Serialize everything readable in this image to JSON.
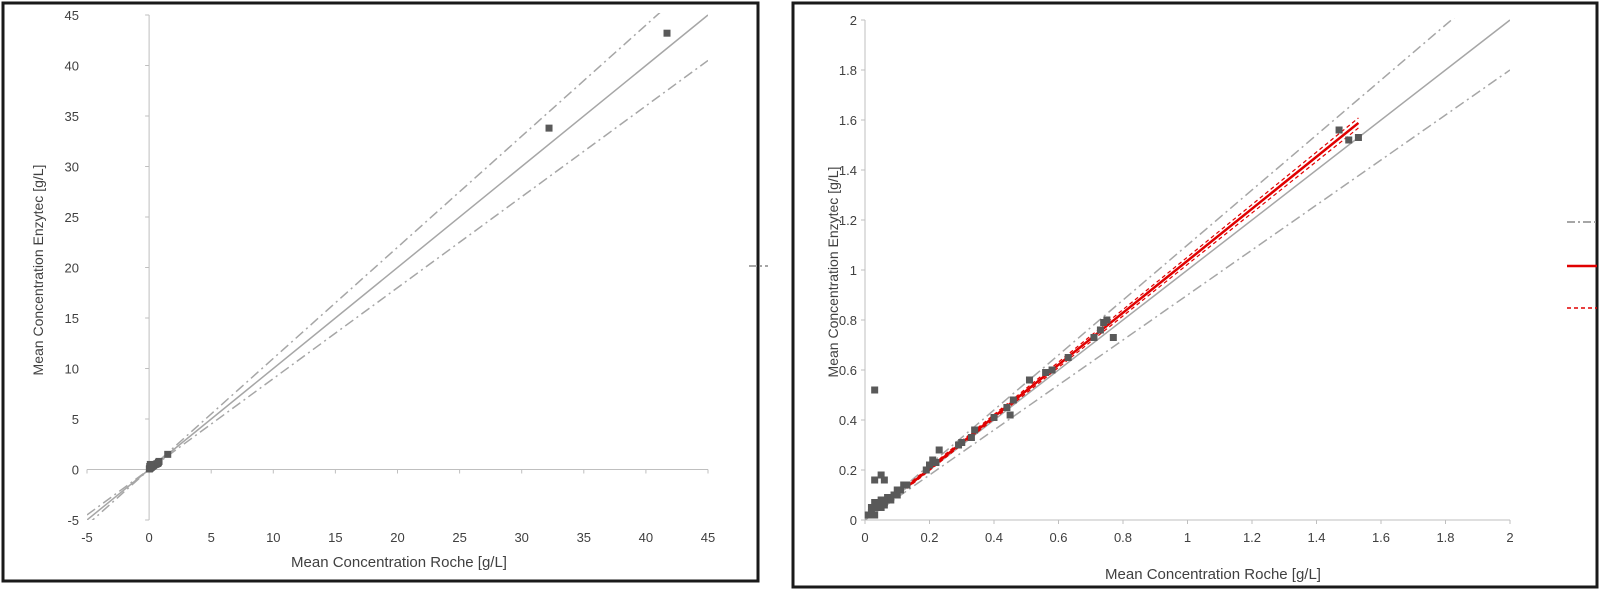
{
  "chart_data": [
    {
      "type": "scatter",
      "xlabel": "Mean Concentration Roche [g/L]",
      "ylabel": "Mean Concentration Enzytec [g/L]",
      "xlim": [
        -5,
        45
      ],
      "ylim": [
        -5,
        45
      ],
      "x_ticks": [
        "-5",
        "0",
        "5",
        "10",
        "15",
        "20",
        "25",
        "30",
        "35",
        "40",
        "45"
      ],
      "y_ticks": [
        "-5",
        "0",
        "5",
        "10",
        "15",
        "20",
        "25",
        "30",
        "35",
        "40",
        "45"
      ],
      "grid": false,
      "legend": "right (cropped)",
      "series": [
        {
          "marker": "square",
          "x": [
            0.02,
            0.05,
            0.1,
            0.15,
            0.2,
            0.25,
            0.3,
            0.35,
            0.4,
            0.5,
            0.6,
            0.7,
            0.75,
            0.8,
            0.05,
            0.1,
            1.5,
            32.2,
            41.7
          ],
          "y": [
            0.05,
            0.1,
            0.15,
            0.2,
            0.25,
            0.3,
            0.35,
            0.4,
            0.45,
            0.5,
            0.55,
            0.6,
            0.7,
            0.8,
            0.3,
            0.5,
            1.5,
            33.8,
            43.2
          ]
        }
      ],
      "reference_lines": [
        {
          "style": "solid",
          "color": "#a6a6a6",
          "slope": 1.0
        },
        {
          "style": "dash-dot",
          "color": "#a6a6a6",
          "slope": 1.1
        },
        {
          "style": "dash-dot",
          "color": "#a6a6a6",
          "slope": 0.9
        }
      ]
    },
    {
      "type": "scatter",
      "xlabel": "Mean Concentration Roche [g/L]",
      "ylabel": "Mean Concentration Enzytec [g/L]",
      "xlim": [
        0,
        2
      ],
      "ylim": [
        0,
        2
      ],
      "x_ticks": [
        "0",
        "0.2",
        "0.4",
        "0.6",
        "0.8",
        "1",
        "1.2",
        "1.4",
        "1.6",
        "1.8",
        "2"
      ],
      "y_ticks": [
        "0",
        "0.2",
        "0.4",
        "0.6",
        "0.8",
        "1",
        "1.2",
        "1.4",
        "1.6",
        "1.8",
        "2"
      ],
      "grid": false,
      "legend": "right (cropped)",
      "series": [
        {
          "marker": "square",
          "x": [
            0.01,
            0.02,
            0.02,
            0.03,
            0.03,
            0.04,
            0.04,
            0.05,
            0.05,
            0.06,
            0.06,
            0.07,
            0.08,
            0.09,
            0.1,
            0.1,
            0.11,
            0.12,
            0.13,
            0.02,
            0.03,
            0.05,
            0.06,
            0.03,
            0.19,
            0.2,
            0.21,
            0.22,
            0.23,
            0.29,
            0.3,
            0.33,
            0.34,
            0.4,
            0.44,
            0.45,
            0.46,
            0.51,
            0.56,
            0.58,
            0.63,
            0.71,
            0.73,
            0.74,
            0.75,
            0.77,
            1.47,
            1.5,
            1.53
          ],
          "y": [
            0.02,
            0.03,
            0.05,
            0.02,
            0.07,
            0.05,
            0.07,
            0.05,
            0.08,
            0.07,
            0.06,
            0.09,
            0.08,
            0.1,
            0.1,
            0.12,
            0.12,
            0.14,
            0.14,
            0.02,
            0.16,
            0.18,
            0.16,
            0.52,
            0.2,
            0.22,
            0.24,
            0.23,
            0.28,
            0.3,
            0.31,
            0.33,
            0.36,
            0.41,
            0.45,
            0.42,
            0.48,
            0.56,
            0.59,
            0.6,
            0.65,
            0.73,
            0.76,
            0.79,
            0.8,
            0.73,
            1.56,
            1.52,
            1.53
          ]
        }
      ],
      "reference_lines": [
        {
          "style": "solid",
          "color": "#a6a6a6",
          "slope": 1.0
        },
        {
          "style": "dash-dot",
          "color": "#a6a6a6",
          "slope": 1.1
        },
        {
          "style": "dash-dot",
          "color": "#a6a6a6",
          "slope": 0.9
        }
      ],
      "regression": {
        "color": "#e00000",
        "x_range": [
          0.13,
          1.53
        ],
        "slope": 1.04,
        "intercept": -0.003,
        "ci_offset": 0.02
      }
    }
  ],
  "legend_fragments": {
    "left": [
      "dash-dot"
    ],
    "right": [
      "dash-dot",
      "solid-red",
      "dashed-red"
    ]
  },
  "colors": {
    "frame": "#1a1a1a",
    "axis": "#bfbfbf",
    "marker": "#595959",
    "reference": "#a6a6a6",
    "regression": "#e00000"
  }
}
